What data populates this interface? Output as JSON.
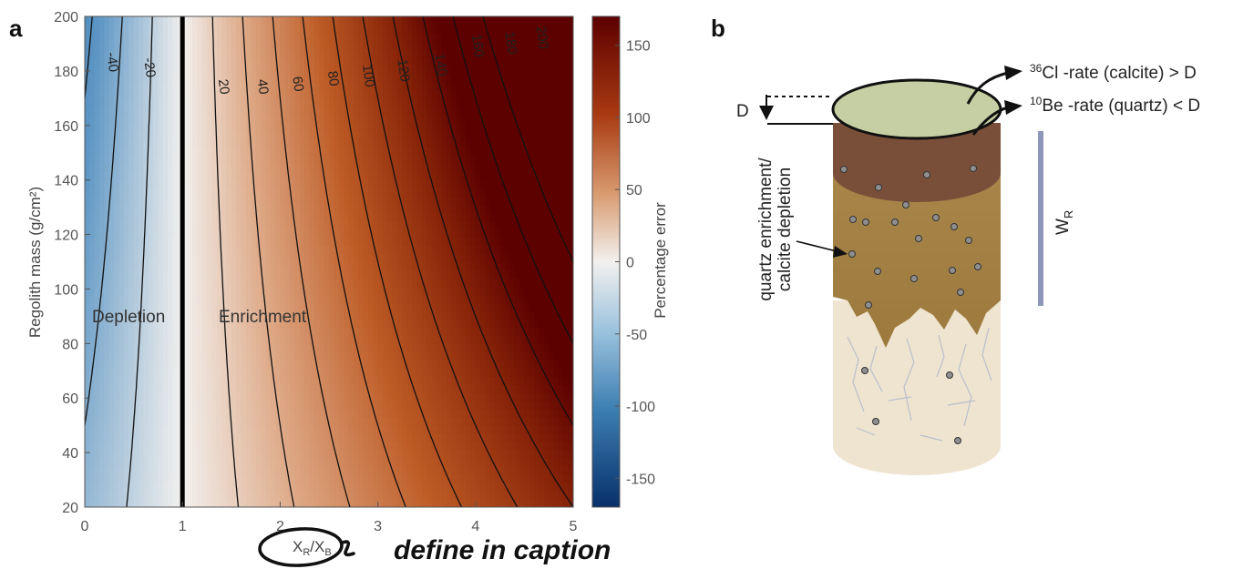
{
  "panel_a": {
    "label": "a"
  },
  "panel_b": {
    "label": "b",
    "cl_iso": "36",
    "cl_text": "Cl -rate (calcite)  > D",
    "be_iso": "10",
    "be_text": "Be -rate (quartz) < D",
    "d_label": "D",
    "side_note_line1": "quartz enrichment/",
    "side_note_line2": "calcite depletion",
    "wr_main": "W",
    "wr_sub": "R"
  },
  "annotation": {
    "handwritten_note": "define in caption"
  },
  "colors": {
    "neg_extreme": "#08306b",
    "neg": "#3d7fb2",
    "neutral": "#f2f0ee",
    "pos": "#c8662e",
    "pos_extreme": "#5c0000",
    "wr_bar": "#8d96b8"
  },
  "chart_data": {
    "type": "heatmap",
    "title": "",
    "xlabel_main": "X",
    "xlabel_sub1": "R",
    "xlabel_sep": "/X",
    "xlabel_sub2": "B",
    "ylabel": "Regolith mass (g/cm²)",
    "xlim": [
      0,
      5
    ],
    "ylim": [
      20,
      200
    ],
    "xticks": [
      "0",
      "1",
      "2",
      "3",
      "4",
      "5"
    ],
    "yticks": [
      "20",
      "40",
      "60",
      "80",
      "100",
      "120",
      "140",
      "160",
      "180",
      "200"
    ],
    "colorbar": {
      "label": "Percentage error",
      "range": [
        -170,
        170
      ],
      "ticks": [
        "150",
        "100",
        "50",
        "0",
        "-50",
        "-100",
        "-150"
      ]
    },
    "divider_x": 1,
    "region_labels": [
      "Depletion",
      "Enrichment"
    ],
    "contour_levels": [
      -60,
      -40,
      -20,
      20,
      40,
      60,
      80,
      100,
      120,
      140,
      160,
      180,
      200
    ],
    "contour_labels": [
      {
        "text": "-40",
        "x": 0.24,
        "y": 183
      },
      {
        "text": "-20",
        "x": 0.62,
        "y": 181
      },
      {
        "text": "20",
        "x": 1.38,
        "y": 174
      },
      {
        "text": "40",
        "x": 1.78,
        "y": 174
      },
      {
        "text": "60",
        "x": 2.14,
        "y": 175
      },
      {
        "text": "80",
        "x": 2.5,
        "y": 177
      },
      {
        "text": "100",
        "x": 2.86,
        "y": 178
      },
      {
        "text": "120",
        "x": 3.22,
        "y": 180
      },
      {
        "text": "140",
        "x": 3.6,
        "y": 182
      },
      {
        "text": "160",
        "x": 3.98,
        "y": 189
      },
      {
        "text": "180",
        "x": 4.32,
        "y": 190
      },
      {
        "text": "200",
        "x": 4.64,
        "y": 192
      }
    ]
  }
}
